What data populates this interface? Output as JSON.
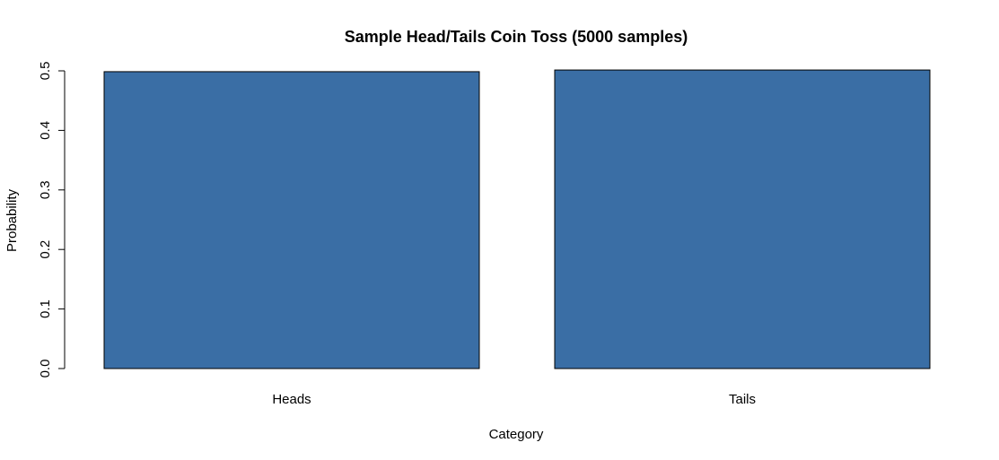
{
  "chart_data": {
    "type": "bar",
    "title": "Sample Head/Tails Coin Toss (5000 samples)",
    "xlabel": "Category",
    "ylabel": "Probability",
    "categories": [
      "Heads",
      "Tails"
    ],
    "values": [
      0.4986,
      0.5014
    ],
    "ylim": [
      0,
      0.5
    ],
    "yticks": [
      "0.0",
      "0.1",
      "0.2",
      "0.3",
      "0.4",
      "0.5"
    ],
    "bar_color": "#3A6EA5",
    "grid": false,
    "legend": "none"
  }
}
